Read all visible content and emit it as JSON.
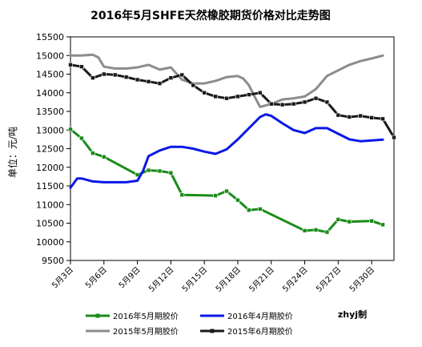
{
  "chart_data": {
    "type": "line",
    "title": "2016年5月SHFE天然橡胶期货价格对比走势图",
    "ylabel": "单位：元/吨",
    "xlabel": "",
    "ylim": [
      9500,
      15500
    ],
    "yticks": [
      9500,
      10000,
      10500,
      11000,
      11500,
      12000,
      12500,
      13000,
      13500,
      14000,
      14500,
      15000,
      15500
    ],
    "x_range": [
      3,
      32
    ],
    "xticks": [
      {
        "x": 3,
        "label": "5月3日"
      },
      {
        "x": 6,
        "label": "5月6日"
      },
      {
        "x": 9,
        "label": "5月9日"
      },
      {
        "x": 12,
        "label": "5月12日"
      },
      {
        "x": 15,
        "label": "5月15日"
      },
      {
        "x": 18,
        "label": "5月18日"
      },
      {
        "x": 21,
        "label": "5月21日"
      },
      {
        "x": 24,
        "label": "5月24日"
      },
      {
        "x": 27,
        "label": "5月27日"
      },
      {
        "x": 30,
        "label": "5月30日"
      }
    ],
    "grid": false,
    "legend_position": "bottom",
    "credit": "zhyj制",
    "series": [
      {
        "name": "2016年5月期胶价",
        "color": "#1a8c1a",
        "markers": true,
        "x": [
          3,
          4,
          5,
          6,
          9,
          10,
          11,
          12,
          13,
          16,
          17,
          18,
          19,
          20,
          24,
          25,
          26,
          27,
          28,
          30,
          31
        ],
        "y": [
          13020,
          12780,
          12380,
          12280,
          11800,
          11920,
          11900,
          11850,
          11260,
          11240,
          11360,
          11120,
          10850,
          10880,
          10300,
          10320,
          10260,
          10600,
          10540,
          10560,
          10460
        ]
      },
      {
        "name": "2016年4月期胶价",
        "color": "#0a18e6",
        "markers": false,
        "x": [
          3,
          3.6,
          4,
          5,
          6,
          7,
          8,
          9,
          9.5,
          10,
          11,
          12,
          13,
          14,
          15,
          16,
          17,
          18,
          19,
          20,
          20.5,
          21,
          22,
          23,
          24,
          25,
          26,
          27,
          28,
          29,
          30,
          31
        ],
        "y": [
          11450,
          11700,
          11700,
          11620,
          11600,
          11600,
          11600,
          11640,
          11900,
          12300,
          12450,
          12550,
          12550,
          12500,
          12420,
          12360,
          12480,
          12750,
          13050,
          13350,
          13420,
          13380,
          13180,
          13000,
          12920,
          13050,
          13050,
          12900,
          12750,
          12700,
          12720,
          12740
        ]
      },
      {
        "name": "2015年5月期胶价",
        "color": "#8c8c8c",
        "markers": false,
        "x": [
          3,
          4,
          5,
          5.5,
          6,
          7,
          8,
          9,
          10,
          11,
          12,
          13,
          14,
          15,
          16,
          17,
          18,
          18.5,
          19,
          19.5,
          20,
          21,
          22,
          23,
          24,
          25,
          26,
          27,
          28,
          29,
          30,
          31
        ],
        "y": [
          15000,
          15000,
          15020,
          14950,
          14700,
          14650,
          14650,
          14680,
          14750,
          14620,
          14680,
          14350,
          14250,
          14250,
          14320,
          14420,
          14450,
          14380,
          14200,
          13900,
          13620,
          13700,
          13820,
          13850,
          13900,
          14100,
          14450,
          14600,
          14750,
          14850,
          14920,
          15000
        ]
      },
      {
        "name": "2015年6月期胶价",
        "color": "#1a1a1a",
        "markers": true,
        "x": [
          3,
          4,
          5,
          6,
          7,
          8,
          9,
          10,
          11,
          12,
          13,
          14,
          15,
          16,
          17,
          18,
          19,
          20,
          21,
          22,
          23,
          24,
          25,
          26,
          27,
          28,
          29,
          30,
          31,
          32
        ],
        "y": [
          14750,
          14700,
          14400,
          14500,
          14480,
          14420,
          14350,
          14300,
          14250,
          14400,
          14480,
          14200,
          14000,
          13900,
          13850,
          13900,
          13950,
          14000,
          13700,
          13680,
          13700,
          13750,
          13850,
          13750,
          13400,
          13350,
          13380,
          13330,
          13300,
          12800
        ]
      }
    ]
  }
}
